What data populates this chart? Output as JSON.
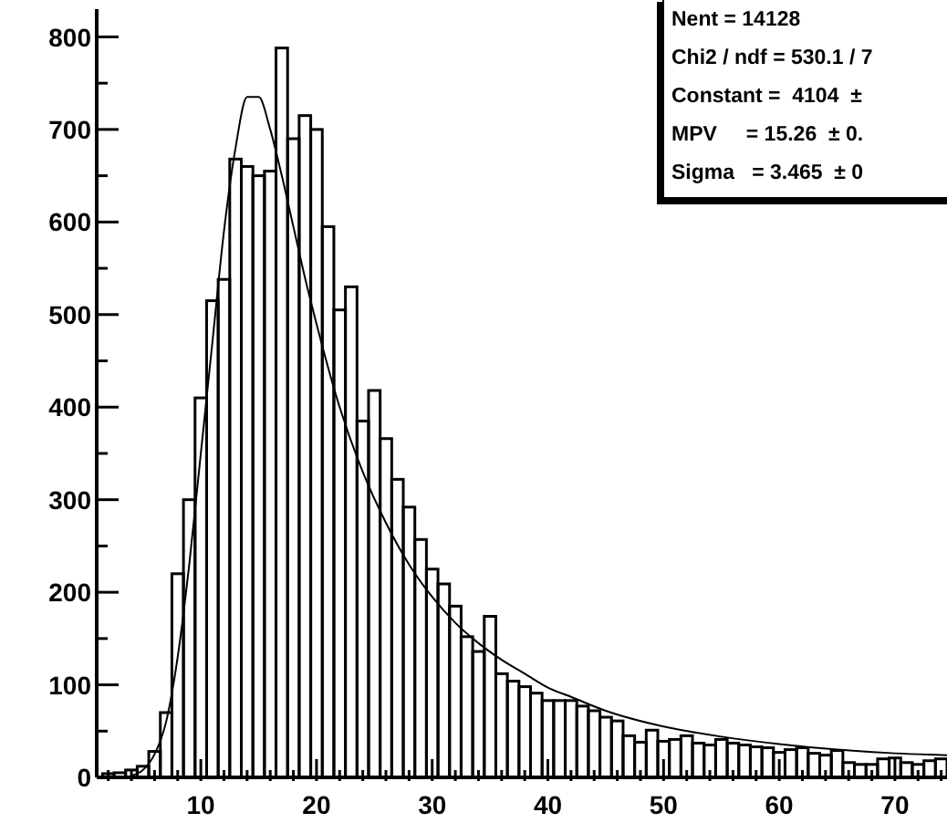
{
  "chart_data": {
    "type": "histogram",
    "color": "#000000",
    "bins": [
      1.5,
      2.5,
      3.5,
      4.5,
      5.5,
      6.5,
      7.5,
      8.5,
      9.5,
      10.5,
      11.5,
      12.5,
      13.5,
      14.5,
      15.5,
      16.5,
      17.5,
      18.5,
      19.5,
      20.5,
      21.5,
      22.5,
      23.5,
      24.5,
      25.5,
      26.5,
      27.5,
      28.5,
      29.5,
      30.5,
      31.5,
      32.5,
      33.5,
      34.5,
      35.5,
      36.5,
      37.5,
      38.5,
      39.5,
      40.5,
      41.5,
      42.5,
      43.5,
      44.5,
      45.5,
      46.5,
      47.5,
      48.5,
      49.5,
      50.5,
      51.5,
      52.5,
      53.5,
      54.5,
      55.5,
      56.5,
      57.5,
      58.5,
      59.5,
      60.5,
      61.5,
      62.5,
      63.5,
      64.5,
      65.5,
      66.5,
      67.5,
      68.5,
      69.5,
      70.5,
      71.5,
      72.5,
      73.5,
      74.5
    ],
    "values": [
      4,
      5,
      8,
      12,
      28,
      70,
      220,
      300,
      410,
      515,
      538,
      668,
      660,
      650,
      655,
      788,
      690,
      715,
      700,
      595,
      505,
      530,
      385,
      418,
      366,
      322,
      292,
      257,
      225,
      209,
      185,
      152,
      136,
      174,
      112,
      104,
      98,
      91,
      83,
      83,
      83,
      77,
      72,
      65,
      61,
      45,
      38,
      51,
      39,
      41,
      45,
      37,
      35,
      41,
      37,
      35,
      33,
      32,
      27,
      30,
      32,
      26,
      24,
      29,
      16,
      14,
      14,
      20,
      21,
      16,
      14,
      18,
      20
    ],
    "series": [
      {
        "type": "line",
        "color": "#000000",
        "x": [
          4,
          5,
          6,
          7,
          8,
          9,
          10,
          11,
          12,
          13,
          14,
          15,
          16,
          17,
          18,
          19,
          20,
          22,
          24,
          26,
          28,
          30,
          32,
          34,
          36,
          38,
          40,
          42,
          45,
          50,
          55,
          60,
          65,
          70,
          74.5
        ],
        "values": [
          2,
          8,
          25,
          60,
          130,
          230,
          350,
          470,
          590,
          680,
          735,
          735,
          700,
          650,
          595,
          540,
          490,
          400,
          330,
          275,
          230,
          195,
          167,
          145,
          127,
          112,
          97,
          87,
          72,
          55,
          44,
          36,
          30,
          26,
          24
        ]
      }
    ],
    "xlim": [
      1,
      74.5
    ],
    "xticks": [
      {
        "value": 2,
        "label": null
      },
      {
        "value": 4,
        "label": null
      },
      {
        "value": 6,
        "label": null
      },
      {
        "value": 8,
        "label": null
      },
      10,
      {
        "value": 12,
        "label": null
      },
      {
        "value": 14,
        "label": null
      },
      {
        "value": 16,
        "label": null
      },
      {
        "value": 18,
        "label": null
      },
      20,
      {
        "value": 22,
        "label": null
      },
      {
        "value": 24,
        "label": null
      },
      {
        "value": 26,
        "label": null
      },
      {
        "value": 28,
        "label": null
      },
      30,
      {
        "value": 32,
        "label": null
      },
      {
        "value": 34,
        "label": null
      },
      {
        "value": 36,
        "label": null
      },
      {
        "value": 38,
        "label": null
      },
      40,
      {
        "value": 42,
        "label": null
      },
      {
        "value": 44,
        "label": null
      },
      {
        "value": 46,
        "label": null
      },
      {
        "value": 48,
        "label": null
      },
      50,
      {
        "value": 52,
        "label": null
      },
      {
        "value": 54,
        "label": null
      },
      {
        "value": 56,
        "label": null
      },
      {
        "value": 58,
        "label": null
      },
      60,
      {
        "value": 62,
        "label": null
      },
      {
        "value": 64,
        "label": null
      },
      {
        "value": 66,
        "label": null
      },
      {
        "value": 68,
        "label": null
      },
      70,
      {
        "value": 72,
        "label": null
      },
      {
        "value": 74,
        "label": null
      }
    ],
    "ylim": [
      0,
      830
    ],
    "yticks": [
      0,
      {
        "value": 50,
        "label": null
      },
      100,
      {
        "value": 150,
        "label": null
      },
      200,
      {
        "value": 250,
        "label": null
      },
      300,
      {
        "value": 350,
        "label": null
      },
      400,
      {
        "value": 450,
        "label": null
      },
      500,
      {
        "value": 550,
        "label": null
      },
      600,
      {
        "value": 650,
        "label": null
      },
      700,
      {
        "value": 750,
        "label": null
      },
      800
    ],
    "annotations": [
      "Nent = 14128",
      "Chi2 / ndf = 530.1 / 7",
      "Constant =  4104  ±",
      "MPV     = 15.26  ± 0.",
      "Sigma   = 3.465  ± 0"
    ]
  }
}
